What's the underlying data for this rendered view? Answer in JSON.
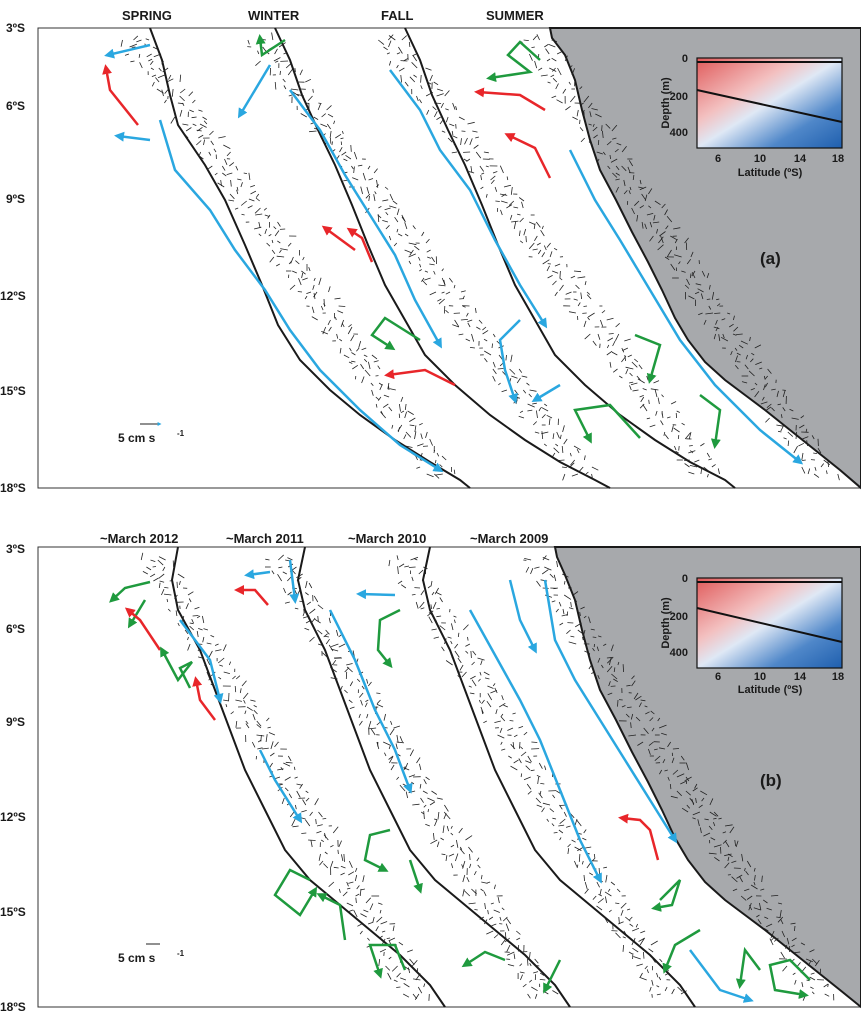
{
  "panel_a": {
    "tag": "(a)",
    "column_titles": [
      "SPRING",
      "WINTER",
      "FALL",
      "SUMMER"
    ],
    "lat_ticks": [
      "3ºS",
      "6ºS",
      "9ºS",
      "12ºS",
      "15ºS",
      "18ºS"
    ],
    "scale_label": "5 cm s",
    "scale_exp": "-1",
    "inset": {
      "ylabel": "Depth (m)",
      "xlabel": "Latitude (ºS)",
      "yticks": [
        "0",
        "200",
        "400"
      ],
      "xticks": [
        "6",
        "10",
        "14",
        "18"
      ]
    }
  },
  "panel_b": {
    "tag": "(b)",
    "column_titles": [
      "~March 2012",
      "~March 2011",
      "~March 2010",
      "~March 2009"
    ],
    "lat_ticks": [
      "3ºS",
      "6ºS",
      "9ºS",
      "12ºS",
      "15ºS",
      "18ºS"
    ],
    "scale_label": "5 cm s",
    "scale_exp": "-1",
    "inset": {
      "ylabel": "Depth (m)",
      "xlabel": "Latitude (ºS)",
      "yticks": [
        "0",
        "200",
        "400"
      ],
      "xticks": [
        "6",
        "10",
        "14",
        "18"
      ]
    }
  },
  "colors": {
    "land": "#a7a9ac",
    "coast": "#1a1a1a",
    "arrow_blue": "#2aa7e0",
    "arrow_red": "#e8262a",
    "arrow_green": "#1f9a3e",
    "vector": "#222222",
    "inset_blue": "#1f5fae",
    "inset_red": "#e05a5a"
  }
}
